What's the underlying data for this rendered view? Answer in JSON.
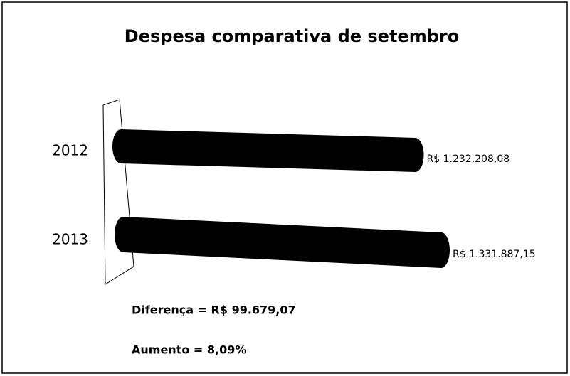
{
  "chart_data": {
    "type": "bar",
    "orientation": "horizontal",
    "title": "Despesa comparativa de setembro",
    "categories": [
      "2012",
      "2013"
    ],
    "values": [
      1232208.08,
      1331887.15
    ],
    "value_labels": [
      "R$ 1.232.208,08",
      "R$ 1.331.887,15"
    ],
    "color": "#000000",
    "annotations": [
      "Diferença = R$ 99.679,07",
      "Aumento = 8,09%"
    ]
  }
}
